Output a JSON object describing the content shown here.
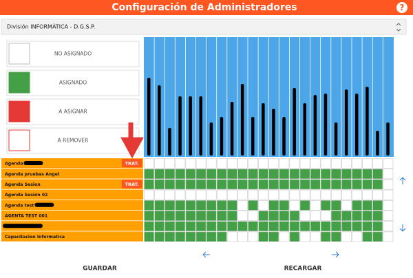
{
  "header": {
    "title": "Configuración de Administradores",
    "help": "?"
  },
  "division": "División INFORMÁTICA - D.G.S.P.",
  "legend": [
    "NO ASIGNADO",
    "ASIGNADO",
    "A ASIGNAR",
    "A REMOVER"
  ],
  "rows": [
    {
      "label": "Agenda",
      "action": "TRAT.",
      "cells": [
        0,
        0,
        0,
        0,
        0,
        0,
        0,
        0,
        0,
        0,
        0,
        0,
        0,
        0,
        0,
        0,
        0,
        0,
        0,
        0,
        0,
        0,
        0,
        0
      ]
    },
    {
      "label": "Agenda pruebas Angel",
      "cells": [
        1,
        1,
        1,
        1,
        1,
        1,
        1,
        1,
        1,
        1,
        1,
        1,
        1,
        1,
        1,
        1,
        1,
        1,
        1,
        1,
        1,
        1,
        1,
        0
      ]
    },
    {
      "label": "Agenda Sesion",
      "action": "TRAT.",
      "cells": [
        1,
        1,
        1,
        1,
        1,
        1,
        1,
        1,
        1,
        1,
        1,
        1,
        1,
        1,
        1,
        1,
        1,
        1,
        1,
        1,
        1,
        1,
        1,
        0
      ]
    },
    {
      "label": "Agenda Sesión 02",
      "cells": [
        0,
        0,
        0,
        0,
        0,
        0,
        0,
        0,
        0,
        0,
        0,
        0,
        0,
        0,
        0,
        0,
        0,
        0,
        0,
        0,
        0,
        0,
        0,
        0
      ]
    },
    {
      "label": "Agenda test",
      "cells": [
        1,
        1,
        1,
        1,
        1,
        1,
        1,
        1,
        1,
        0,
        1,
        0,
        1,
        1,
        0,
        1,
        0,
        1,
        1,
        0,
        1,
        1,
        1,
        0
      ]
    },
    {
      "label": "AGENTA TEST 001",
      "cells": [
        1,
        1,
        1,
        1,
        1,
        1,
        1,
        1,
        1,
        0,
        0,
        1,
        1,
        1,
        1,
        0,
        0,
        0,
        1,
        1,
        1,
        1,
        1,
        0
      ]
    },
    {
      "cells": [
        1,
        1,
        1,
        1,
        1,
        1,
        1,
        1,
        1,
        1,
        1,
        1,
        1,
        1,
        1,
        1,
        1,
        1,
        1,
        1,
        1,
        1,
        1,
        0
      ]
    },
    {
      "label": "Capacitacion Informatica",
      "cells": [
        1,
        1,
        1,
        1,
        1,
        1,
        1,
        1,
        0,
        0,
        0,
        1,
        1,
        0,
        1,
        0,
        0,
        1,
        1,
        0,
        0,
        1,
        1,
        0
      ]
    }
  ],
  "buttons": {
    "save": "GUARDAR",
    "reload": "RECARGAR"
  }
}
